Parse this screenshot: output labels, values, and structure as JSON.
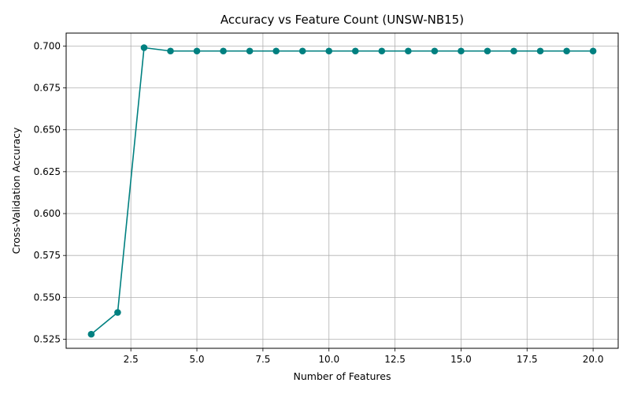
{
  "chart_data": {
    "type": "line",
    "title": "Accuracy vs Feature Count (UNSW-NB15)",
    "xlabel": "Number of Features",
    "ylabel": "Cross-Validation Accuracy",
    "xlim": [
      0.05,
      20.95
    ],
    "ylim": [
      0.5196,
      0.7077
    ],
    "xticks": [
      2.5,
      5.0,
      7.5,
      10.0,
      12.5,
      15.0,
      17.5,
      20.0
    ],
    "xtick_labels": [
      "2.5",
      "5.0",
      "7.5",
      "10.0",
      "12.5",
      "15.0",
      "17.5",
      "20.0"
    ],
    "yticks": [
      0.525,
      0.55,
      0.575,
      0.6,
      0.625,
      0.65,
      0.675,
      0.7
    ],
    "ytick_labels": [
      "0.525",
      "0.550",
      "0.575",
      "0.600",
      "0.625",
      "0.650",
      "0.675",
      "0.700"
    ],
    "grid": true,
    "color": "#008080",
    "series": [
      {
        "x": [
          1,
          2,
          3,
          4,
          5,
          6,
          7,
          8,
          9,
          10,
          11,
          12,
          13,
          14,
          15,
          16,
          17,
          18,
          19,
          20
        ],
        "values": [
          0.528,
          0.541,
          0.699,
          0.697,
          0.697,
          0.697,
          0.697,
          0.697,
          0.697,
          0.697,
          0.697,
          0.697,
          0.697,
          0.697,
          0.697,
          0.697,
          0.697,
          0.697,
          0.697,
          0.697
        ]
      }
    ]
  }
}
